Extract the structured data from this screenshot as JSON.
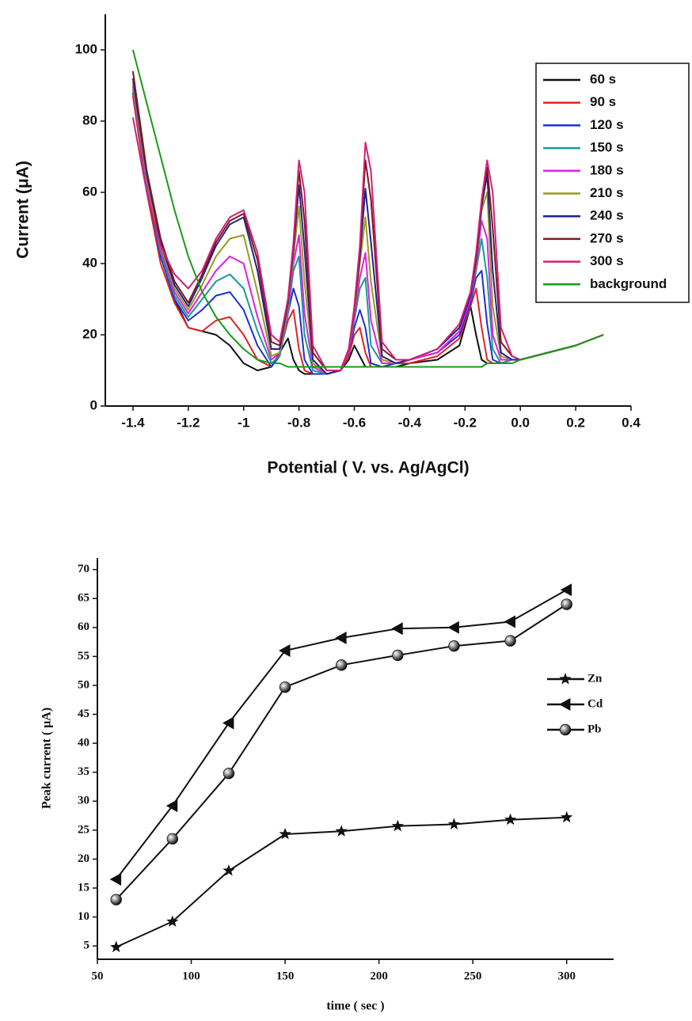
{
  "chart_data": [
    {
      "type": "line",
      "x_label": "Potential ( V. vs. Ag/AgCl)",
      "y_label": "Current (μA)",
      "xlim": [
        -1.5,
        0.4
      ],
      "ylim": [
        0,
        110
      ],
      "xticks": [
        -1.4,
        -1.2,
        -1.0,
        -0.8,
        -0.6,
        -0.4,
        -0.2,
        {
          "value": 0,
          "label": "0.0"
        },
        0.2,
        0.4
      ],
      "yticks": [
        0,
        20,
        40,
        60,
        80,
        100
      ],
      "legend": "upper right",
      "x": [
        -1.4,
        -1.35,
        -1.3,
        -1.25,
        -1.2,
        -1.15,
        -1.1,
        -1.05,
        -1.0,
        -0.95,
        -0.9,
        -0.87,
        -0.84,
        -0.82,
        -0.8,
        -0.78,
        -0.75,
        -0.7,
        -0.65,
        -0.62,
        -0.6,
        -0.58,
        -0.56,
        -0.54,
        -0.5,
        -0.45,
        -0.4,
        -0.3,
        -0.22,
        -0.18,
        -0.16,
        -0.14,
        -0.12,
        -0.1,
        -0.07,
        -0.03,
        0.0,
        0.1,
        0.2,
        0.3
      ],
      "series": [
        {
          "name": "60 s",
          "color": "#111111",
          "values": [
            88,
            62,
            42,
            30,
            22,
            21,
            20,
            17,
            12,
            10,
            11,
            15,
            19,
            13,
            10,
            9,
            9,
            9,
            10,
            13,
            17,
            14,
            11,
            11,
            11,
            11,
            12,
            13,
            17,
            28,
            20,
            13,
            12,
            12,
            12,
            13,
            13,
            15,
            17,
            20
          ]
        },
        {
          "name": "90 s",
          "color": "#e02424",
          "values": [
            87,
            60,
            40,
            29,
            22,
            21,
            24,
            25,
            20,
            13,
            11,
            15,
            24,
            27,
            16,
            10,
            9,
            9,
            10,
            14,
            20,
            22,
            15,
            11,
            11,
            12,
            12,
            14,
            19,
            28,
            33,
            22,
            13,
            12,
            12,
            13,
            13,
            15,
            17,
            20
          ]
        },
        {
          "name": "120 s",
          "color": "#1f2fd6",
          "values": [
            90,
            62,
            42,
            30,
            24,
            27,
            31,
            32,
            27,
            17,
            11,
            14,
            26,
            33,
            28,
            13,
            9,
            9,
            10,
            15,
            22,
            27,
            22,
            12,
            11,
            12,
            13,
            15,
            20,
            29,
            36,
            38,
            23,
            13,
            12,
            13,
            13,
            15,
            17,
            20
          ]
        },
        {
          "name": "150 s",
          "color": "#1a9a9a",
          "values": [
            89,
            62,
            43,
            31,
            25,
            30,
            35,
            37,
            33,
            21,
            12,
            14,
            26,
            38,
            42,
            20,
            10,
            9,
            10,
            15,
            24,
            33,
            36,
            17,
            12,
            12,
            13,
            15,
            21,
            30,
            38,
            47,
            36,
            16,
            12,
            13,
            13,
            15,
            17,
            20
          ]
        },
        {
          "name": "180 s",
          "color": "#e020e0",
          "values": [
            90,
            63,
            44,
            32,
            26,
            32,
            38,
            42,
            40,
            25,
            13,
            15,
            27,
            40,
            48,
            26,
            11,
            9,
            10,
            15,
            25,
            36,
            43,
            24,
            12,
            12,
            13,
            15,
            21,
            30,
            39,
            52,
            47,
            20,
            13,
            13,
            13,
            15,
            17,
            20
          ]
        },
        {
          "name": "210 s",
          "color": "#9a9a20",
          "values": [
            91,
            64,
            45,
            33,
            27,
            34,
            42,
            47,
            48,
            32,
            14,
            15,
            28,
            42,
            56,
            35,
            12,
            9,
            10,
            16,
            26,
            40,
            53,
            35,
            13,
            12,
            13,
            16,
            22,
            31,
            40,
            55,
            60,
            28,
            14,
            13,
            13,
            15,
            17,
            20
          ]
        },
        {
          "name": "240 s",
          "color": "#22228c",
          "values": [
            92,
            65,
            46,
            34,
            28,
            36,
            45,
            51,
            53,
            38,
            16,
            16,
            29,
            44,
            62,
            44,
            13,
            9,
            10,
            16,
            27,
            42,
            61,
            46,
            14,
            12,
            13,
            16,
            22,
            31,
            41,
            56,
            65,
            38,
            15,
            13,
            13,
            15,
            17,
            20
          ]
        },
        {
          "name": "270 s",
          "color": "#7a1a1a",
          "values": [
            94,
            66,
            47,
            35,
            29,
            37,
            46,
            52,
            54,
            41,
            18,
            17,
            30,
            45,
            66,
            52,
            15,
            10,
            10,
            16,
            27,
            44,
            69,
            58,
            16,
            13,
            13,
            16,
            23,
            32,
            42,
            57,
            67,
            50,
            18,
            14,
            13,
            15,
            17,
            20
          ]
        },
        {
          "name": "300 s",
          "color": "#d0207a",
          "values": [
            81,
            60,
            45,
            37,
            33,
            38,
            47,
            53,
            55,
            43,
            20,
            18,
            30,
            46,
            69,
            60,
            17,
            10,
            10,
            16,
            28,
            45,
            74,
            66,
            18,
            13,
            13,
            16,
            23,
            32,
            43,
            58,
            69,
            60,
            22,
            14,
            13,
            15,
            17,
            20
          ]
        },
        {
          "name": "background",
          "color": "#1a9a1a",
          "values": [
            100,
            85,
            70,
            55,
            42,
            32,
            25,
            20,
            16,
            13,
            12,
            12,
            11,
            11,
            11,
            11,
            11,
            11,
            11,
            11,
            11,
            11,
            11,
            11,
            11,
            11,
            11,
            11,
            11,
            11,
            11,
            11,
            12,
            12,
            12,
            12,
            13,
            15,
            17,
            20
          ]
        }
      ]
    },
    {
      "type": "line",
      "x_label": "time ( sec )",
      "y_label": "Peak current ( μA)",
      "xlim": [
        50,
        325
      ],
      "ylim": [
        2.7,
        72
      ],
      "xticks": [
        50,
        100,
        150,
        200,
        250,
        300
      ],
      "yticks": [
        5,
        10,
        15,
        20,
        25,
        30,
        35,
        40,
        45,
        50,
        55,
        60,
        65,
        70
      ],
      "legend": "right",
      "x": [
        60,
        90,
        120,
        150,
        180,
        210,
        240,
        270,
        300
      ],
      "series": [
        {
          "name": "Zn",
          "color": "#111111",
          "marker": "star",
          "values": [
            4.8,
            9.2,
            18,
            24.3,
            24.8,
            25.7,
            26,
            26.8,
            27.2
          ]
        },
        {
          "name": "Cd",
          "color": "#111111",
          "marker": "triangle-left",
          "values": [
            16.5,
            29.2,
            43.5,
            56,
            58.2,
            59.8,
            60,
            61,
            66.5
          ]
        },
        {
          "name": "Pb",
          "color": "#111111",
          "marker": "sphere",
          "values": [
            13,
            23.5,
            34.8,
            49.7,
            53.5,
            55.2,
            56.8,
            57.7,
            64
          ]
        }
      ]
    }
  ]
}
